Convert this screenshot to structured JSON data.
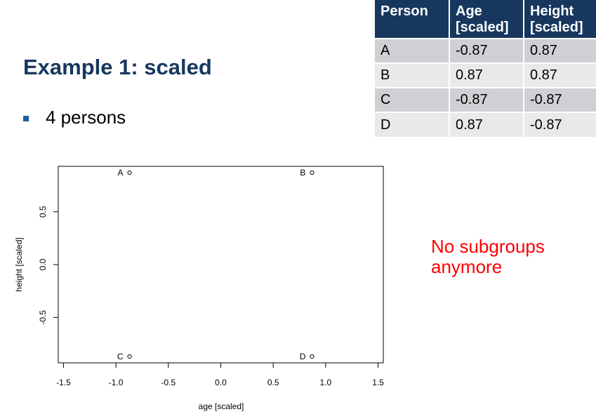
{
  "slide": {
    "title": "Example 1: scaled",
    "bullet": "4 persons",
    "note_lines": [
      "No subgroups",
      "anymore"
    ]
  },
  "table": {
    "headers": [
      [
        "Person"
      ],
      [
        "Age",
        "[scaled]"
      ],
      [
        "Height",
        "[scaled]"
      ]
    ],
    "rows": [
      [
        "A",
        "-0.87",
        "0.87"
      ],
      [
        "B",
        "0.87",
        "0.87"
      ],
      [
        "C",
        "-0.87",
        "-0.87"
      ],
      [
        "D",
        "0.87",
        "-0.87"
      ]
    ]
  },
  "colors": {
    "title": "#17375e",
    "table_header_bg": "#17375e",
    "note": "#ff0000",
    "bullet": "#1f5f9e"
  },
  "chart_data": {
    "type": "scatter",
    "title": "",
    "xlabel": "age [scaled]",
    "ylabel": "height [scaled]",
    "xlim": [
      -1.55,
      1.55
    ],
    "ylim": [
      -0.93,
      0.93
    ],
    "x_ticks": [
      "-1.5",
      "-1.0",
      "-0.5",
      "0.0",
      "0.5",
      "1.0",
      "1.5"
    ],
    "y_ticks": [
      "-0.5",
      "0.0",
      "0.5"
    ],
    "grid": false,
    "points": [
      {
        "label": "A",
        "x": -0.87,
        "y": 0.87
      },
      {
        "label": "B",
        "x": 0.87,
        "y": 0.87
      },
      {
        "label": "C",
        "x": -0.87,
        "y": -0.87
      },
      {
        "label": "D",
        "x": 0.87,
        "y": -0.87
      }
    ]
  }
}
